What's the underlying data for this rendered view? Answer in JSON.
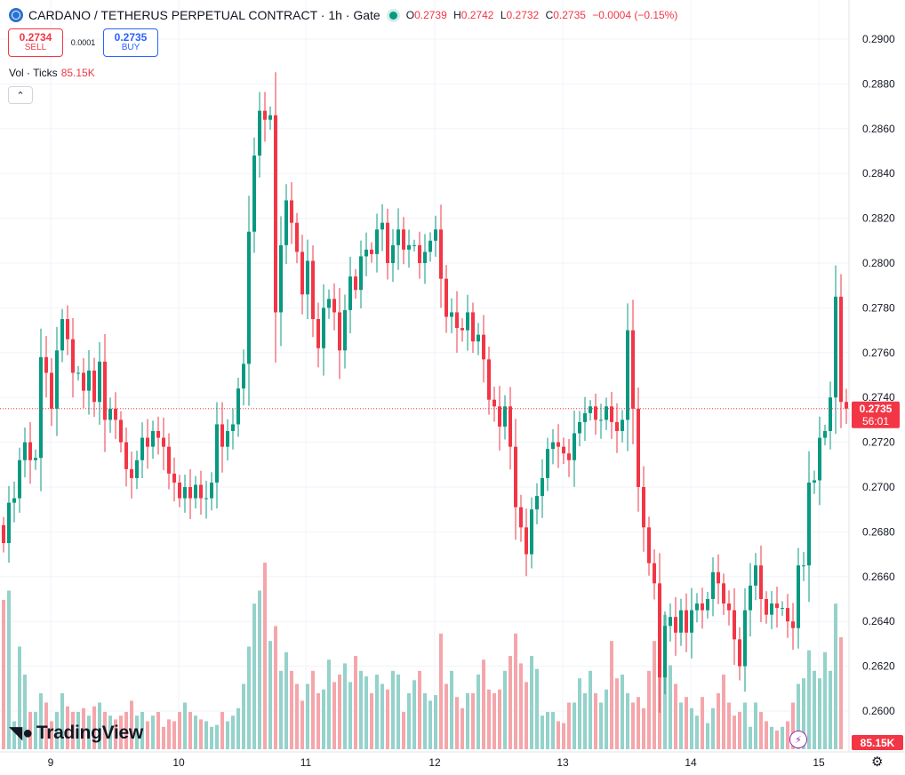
{
  "header": {
    "title": "CARDANO / TETHERUS PERPETUAL CONTRACT · 1h · Gate",
    "ohlc": {
      "o_label": "O",
      "o": "0.2739",
      "h_label": "H",
      "h": "0.2742",
      "l_label": "L",
      "l": "0.2732",
      "c_label": "C",
      "c": "0.2735",
      "change": "−0.0004 (−0.15%)"
    }
  },
  "trade": {
    "sell_price": "0.2734",
    "sell_label": "SELL",
    "spread": "0.0001",
    "buy_price": "0.2735",
    "buy_label": "BUY"
  },
  "volume_legend": {
    "label": "Vol · Ticks",
    "value": "85.15K"
  },
  "logo": {
    "text": "TradingView"
  },
  "icons": {
    "coin": "cardano-coin-icon",
    "status": "market-open-dot-icon",
    "collapse": "chevron-up-icon",
    "bolt": "lightning-icon",
    "settings": "gear-icon",
    "logo": "tradingview-logo-icon"
  },
  "colors": {
    "up": "#089981",
    "down": "#f23645",
    "vol_up": "#94d2ca",
    "vol_down": "#f5a6ab"
  },
  "chart_data": {
    "type": "candlestick",
    "price_axis": {
      "min": 0.26,
      "max": 0.29,
      "ticks": [
        "0.2900",
        "0.2880",
        "0.2860",
        "0.2840",
        "0.2820",
        "0.2800",
        "0.2780",
        "0.2760",
        "0.2740",
        "0.2720",
        "0.2700",
        "0.2680",
        "0.2660",
        "0.2640",
        "0.2620",
        "0.2600"
      ]
    },
    "x_axis": {
      "labels": [
        "9",
        "10",
        "11",
        "12",
        "13",
        "14",
        "15"
      ]
    },
    "last_price": {
      "value": "0.2735",
      "countdown": "56:01"
    },
    "volume_label": "85.15K",
    "closes": [
      0.2675,
      0.2693,
      0.2695,
      0.2712,
      0.272,
      0.2712,
      0.2713,
      0.2758,
      0.2751,
      0.2735,
      0.2761,
      0.2775,
      0.2766,
      0.2751,
      0.2751,
      0.2743,
      0.2752,
      0.2738,
      0.2756,
      0.273,
      0.2735,
      0.273,
      0.272,
      0.2708,
      0.2704,
      0.2712,
      0.2722,
      0.2718,
      0.2725,
      0.2722,
      0.2718,
      0.2706,
      0.2702,
      0.2695,
      0.27,
      0.2695,
      0.2701,
      0.2695,
      0.2695,
      0.2702,
      0.2728,
      0.2718,
      0.2725,
      0.2728,
      0.2744,
      0.2755,
      0.2814,
      0.2848,
      0.2868,
      0.2864,
      0.2866,
      0.2778,
      0.2808,
      0.2828,
      0.2818,
      0.2805,
      0.2786,
      0.2801,
      0.2775,
      0.2762,
      0.278,
      0.2784,
      0.2778,
      0.2761,
      0.2779,
      0.2794,
      0.2788,
      0.2803,
      0.2806,
      0.2804,
      0.2815,
      0.2818,
      0.28,
      0.2808,
      0.2815,
      0.2806,
      0.2808,
      0.2808,
      0.28,
      0.2805,
      0.281,
      0.2815,
      0.2793,
      0.2776,
      0.2778,
      0.2771,
      0.277,
      0.2778,
      0.2765,
      0.2768,
      0.2757,
      0.2739,
      0.2736,
      0.2727,
      0.2736,
      0.2718,
      0.2691,
      0.2682,
      0.267,
      0.269,
      0.2696,
      0.2704,
      0.2717,
      0.272,
      0.2718,
      0.2715,
      0.2712,
      0.2724,
      0.2729,
      0.2733,
      0.2736,
      0.273,
      0.273,
      0.2736,
      0.2729,
      0.2725,
      0.273,
      0.277,
      0.2735,
      0.27,
      0.2682,
      0.2666,
      0.2657,
      0.2615,
      0.2638,
      0.2642,
      0.2635,
      0.2645,
      0.2635,
      0.2645,
      0.2648,
      0.2645,
      0.265,
      0.2662,
      0.2657,
      0.2648,
      0.2645,
      0.2632,
      0.262,
      0.2645,
      0.2656,
      0.2665,
      0.265,
      0.2643,
      0.2648,
      0.2646,
      0.2646,
      0.264,
      0.2637,
      0.2665,
      0.2665,
      0.2702,
      0.2703,
      0.2722,
      0.2725,
      0.274,
      0.2785,
      0.2738,
      0.2735
    ],
    "volumes": [
      0.8,
      0.85,
      0.15,
      0.55,
      0.4,
      0.2,
      0.2,
      0.3,
      0.25,
      0.15,
      0.2,
      0.3,
      0.23,
      0.2,
      0.2,
      0.22,
      0.18,
      0.23,
      0.25,
      0.2,
      0.18,
      0.16,
      0.18,
      0.2,
      0.26,
      0.18,
      0.2,
      0.15,
      0.18,
      0.2,
      0.12,
      0.16,
      0.15,
      0.2,
      0.25,
      0.2,
      0.18,
      0.16,
      0.15,
      0.12,
      0.13,
      0.2,
      0.15,
      0.18,
      0.22,
      0.35,
      0.55,
      0.78,
      0.85,
      1.0,
      0.58,
      0.66,
      0.42,
      0.52,
      0.42,
      0.35,
      0.26,
      0.35,
      0.42,
      0.3,
      0.32,
      0.48,
      0.36,
      0.4,
      0.46,
      0.36,
      0.5,
      0.42,
      0.39,
      0.3,
      0.4,
      0.35,
      0.32,
      0.42,
      0.4,
      0.2,
      0.3,
      0.37,
      0.42,
      0.3,
      0.26,
      0.29,
      0.62,
      0.35,
      0.42,
      0.28,
      0.22,
      0.3,
      0.3,
      0.4,
      0.48,
      0.32,
      0.3,
      0.32,
      0.42,
      0.5,
      0.62,
      0.46,
      0.36,
      0.5,
      0.43,
      0.18,
      0.2,
      0.2,
      0.15,
      0.14,
      0.25,
      0.25,
      0.38,
      0.3,
      0.42,
      0.3,
      0.25,
      0.32,
      0.58,
      0.38,
      0.4,
      0.3,
      0.25,
      0.28,
      0.22,
      0.42,
      0.58,
      0.75,
      0.72,
      0.45,
      0.35,
      0.25,
      0.28,
      0.22,
      0.18,
      0.28,
      0.14,
      0.22,
      0.3,
      0.4,
      0.25,
      0.18,
      0.2,
      0.25,
      0.12,
      0.25,
      0.2,
      0.15,
      0.12,
      0.1,
      0.12,
      0.15,
      0.25,
      0.35,
      0.38,
      0.53,
      0.42,
      0.38,
      0.52,
      0.42,
      0.78,
      0.6
    ],
    "series": [
      {
        "name": "Vol · Ticks",
        "note": "volume histogram, relative heights"
      }
    ]
  }
}
